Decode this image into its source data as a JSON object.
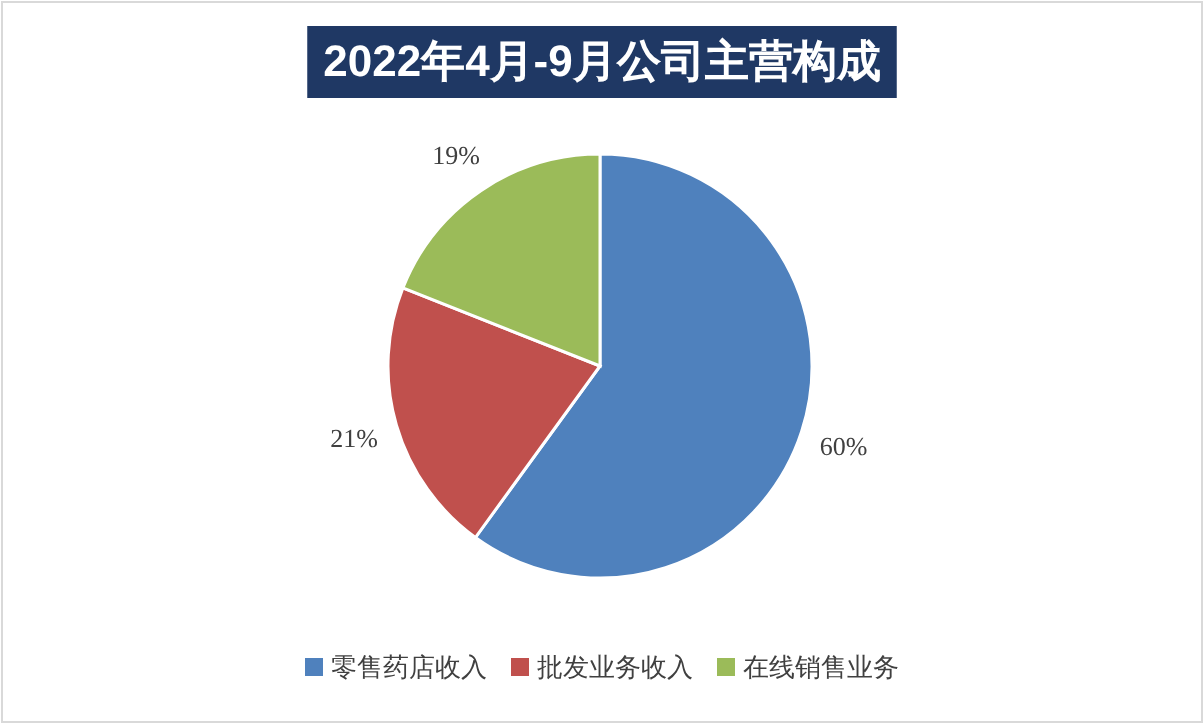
{
  "chart_data": {
    "type": "pie",
    "title": "2022年4月-9月公司主营构成",
    "categories": [
      "零售药店收入",
      "批发业务收入",
      "在线销售业务"
    ],
    "values": [
      60,
      21,
      19
    ],
    "colors": [
      "#4f81bd",
      "#c0504d",
      "#9bbb59"
    ],
    "value_labels": [
      "60%",
      "21%",
      "19%"
    ],
    "legend": "bottom"
  }
}
